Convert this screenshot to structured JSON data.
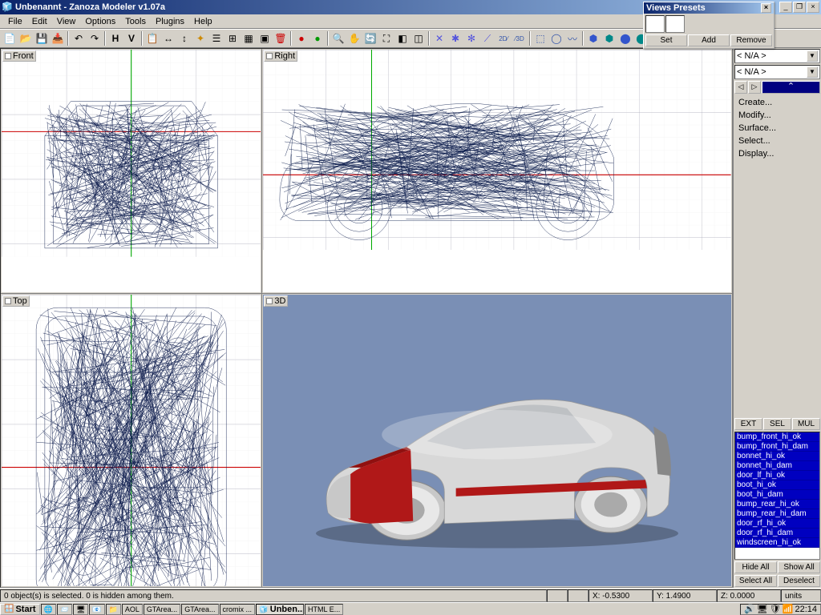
{
  "window": {
    "title": "Unbenannt - Zanoza Modeler v1.07a",
    "min_label": "_",
    "max_label": "□",
    "close_label": "×",
    "restore_label": "❐"
  },
  "menubar": [
    "File",
    "Edit",
    "View",
    "Options",
    "Tools",
    "Plugins",
    "Help"
  ],
  "views_preset": {
    "title": "Views Presets",
    "set": "Set",
    "add": "Add",
    "remove": "Remove",
    "close": "×"
  },
  "viewports": {
    "front": "Front",
    "right": "Right",
    "top": "Top",
    "three_d": "3D",
    "grid_minor": "#eeeeee",
    "grid_major": "#a8a8b8",
    "axis_x": "#cc0000",
    "axis_y": "#00aa00",
    "wire_color": "#0a1a4a",
    "bg_3d": "#7a8fb5",
    "car_body": "#d8d8d8",
    "car_stripe": "#b01818",
    "car_dark": "#888888"
  },
  "side_panel": {
    "na_text": "< N/A >",
    "menu": [
      "Create...",
      "Modify...",
      "Surface...",
      "Select...",
      "Display..."
    ],
    "ext": "EXT",
    "sel": "SEL",
    "mul": "MUL",
    "parts": [
      "bump_front_hi_ok",
      "bump_front_hi_dam",
      "bonnet_hi_ok",
      "bonnet_hi_dam",
      "door_lf_hi_ok",
      "boot_hi_ok",
      "boot_hi_dam",
      "bump_rear_hi_ok",
      "bump_rear_hi_dam",
      "door_rf_hi_ok",
      "door_rf_hi_dam",
      "windscreen_hi_ok"
    ],
    "hide_all": "Hide All",
    "show_all": "Show All",
    "select_all": "Select All",
    "deselect": "Deselect"
  },
  "statusbar": {
    "msg": "0 object(s) is selected. 0 is hidden among them.",
    "x": "X: -0.5300",
    "y": "Y: 1.4900",
    "z": "Z: 0.0000",
    "units": "units"
  },
  "taskbar": {
    "start": "Start",
    "tasks": [
      "",
      "",
      "AOL",
      "GTArea...",
      "GTArea...",
      "cromix ...",
      "Unben...",
      "HTML E..."
    ],
    "active_index": 6,
    "clock": "22:14"
  }
}
